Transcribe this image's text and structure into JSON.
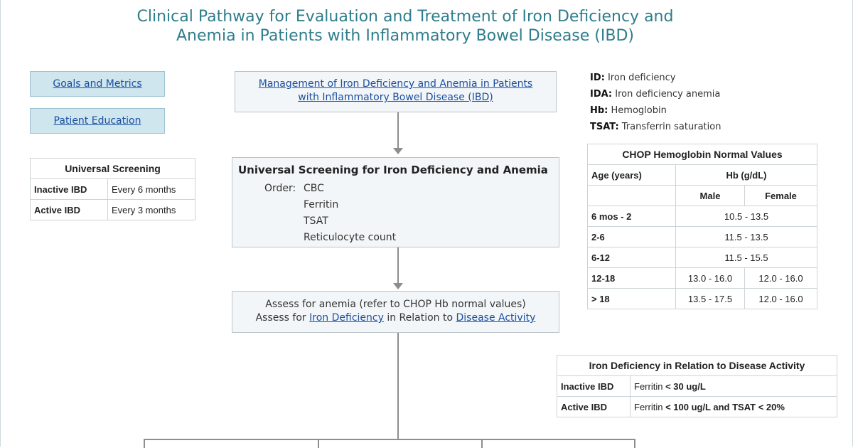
{
  "title": {
    "line1": "Clinical Pathway for Evaluation and Treatment of Iron Deficiency and",
    "line2": "Anemia in Patients with Inflammatory Bowel Disease (IBD)"
  },
  "nav": {
    "goals": "Goals and Metrics",
    "education": "Patient Education"
  },
  "management_link": {
    "line1": "Management of Iron Deficiency and Anemia in Patients",
    "line2": "with Inflammatory Bowel Disease (IBD)"
  },
  "legend": [
    {
      "abbr": "ID:",
      "text": "Iron deficiency"
    },
    {
      "abbr": "IDA:",
      "text": "Iron deficiency anemia"
    },
    {
      "abbr": "Hb:",
      "text": "Hemoglobin"
    },
    {
      "abbr": "TSAT:",
      "text": "Transferrin saturation"
    }
  ],
  "universal_screening_table": {
    "title": "Universal Screening",
    "rows": [
      {
        "label": "Inactive IBD",
        "value": "Every 6 months"
      },
      {
        "label": "Active IBD",
        "value": "Every 3 months"
      }
    ]
  },
  "screening_box": {
    "title": "Universal Screening for Iron Deficiency and Anemia",
    "order_label": "Order:",
    "items": [
      "CBC",
      "Ferritin",
      "TSAT",
      "Reticulocyte count"
    ]
  },
  "assess_box": {
    "line1": "Assess for anemia (refer to CHOP Hb normal values)",
    "line2_prefix": "Assess for ",
    "line2_link1": "Iron Deficiency",
    "line2_mid": " in Relation to ",
    "line2_link2": "Disease Activity"
  },
  "hb_table": {
    "title": "CHOP Hemoglobin Normal Values",
    "col_age": "Age (years)",
    "col_hb": "Hb (g/dL)",
    "col_male": "Male",
    "col_female": "Female",
    "rows": [
      {
        "age": "6 mos - 2",
        "combined": "10.5 - 13.5"
      },
      {
        "age": "2-6",
        "combined": "11.5 - 13.5"
      },
      {
        "age": "6-12",
        "combined": "11.5 - 15.5"
      },
      {
        "age": "12-18",
        "male": "13.0 - 16.0",
        "female": "12.0 - 16.0"
      },
      {
        "age": "> 18",
        "male": "13.5 - 17.5",
        "female": "12.0 - 16.0"
      }
    ]
  },
  "activity_table": {
    "title": "Iron Deficiency in Relation to Disease Activity",
    "rows": [
      {
        "label": "Inactive IBD",
        "value_prefix": "Ferritin ",
        "value_bold": "< 30 ug/L"
      },
      {
        "label": "Active IBD",
        "value_prefix": "Ferritin ",
        "value_bold": "< 100 ug/L and TSAT < 20%"
      }
    ]
  }
}
